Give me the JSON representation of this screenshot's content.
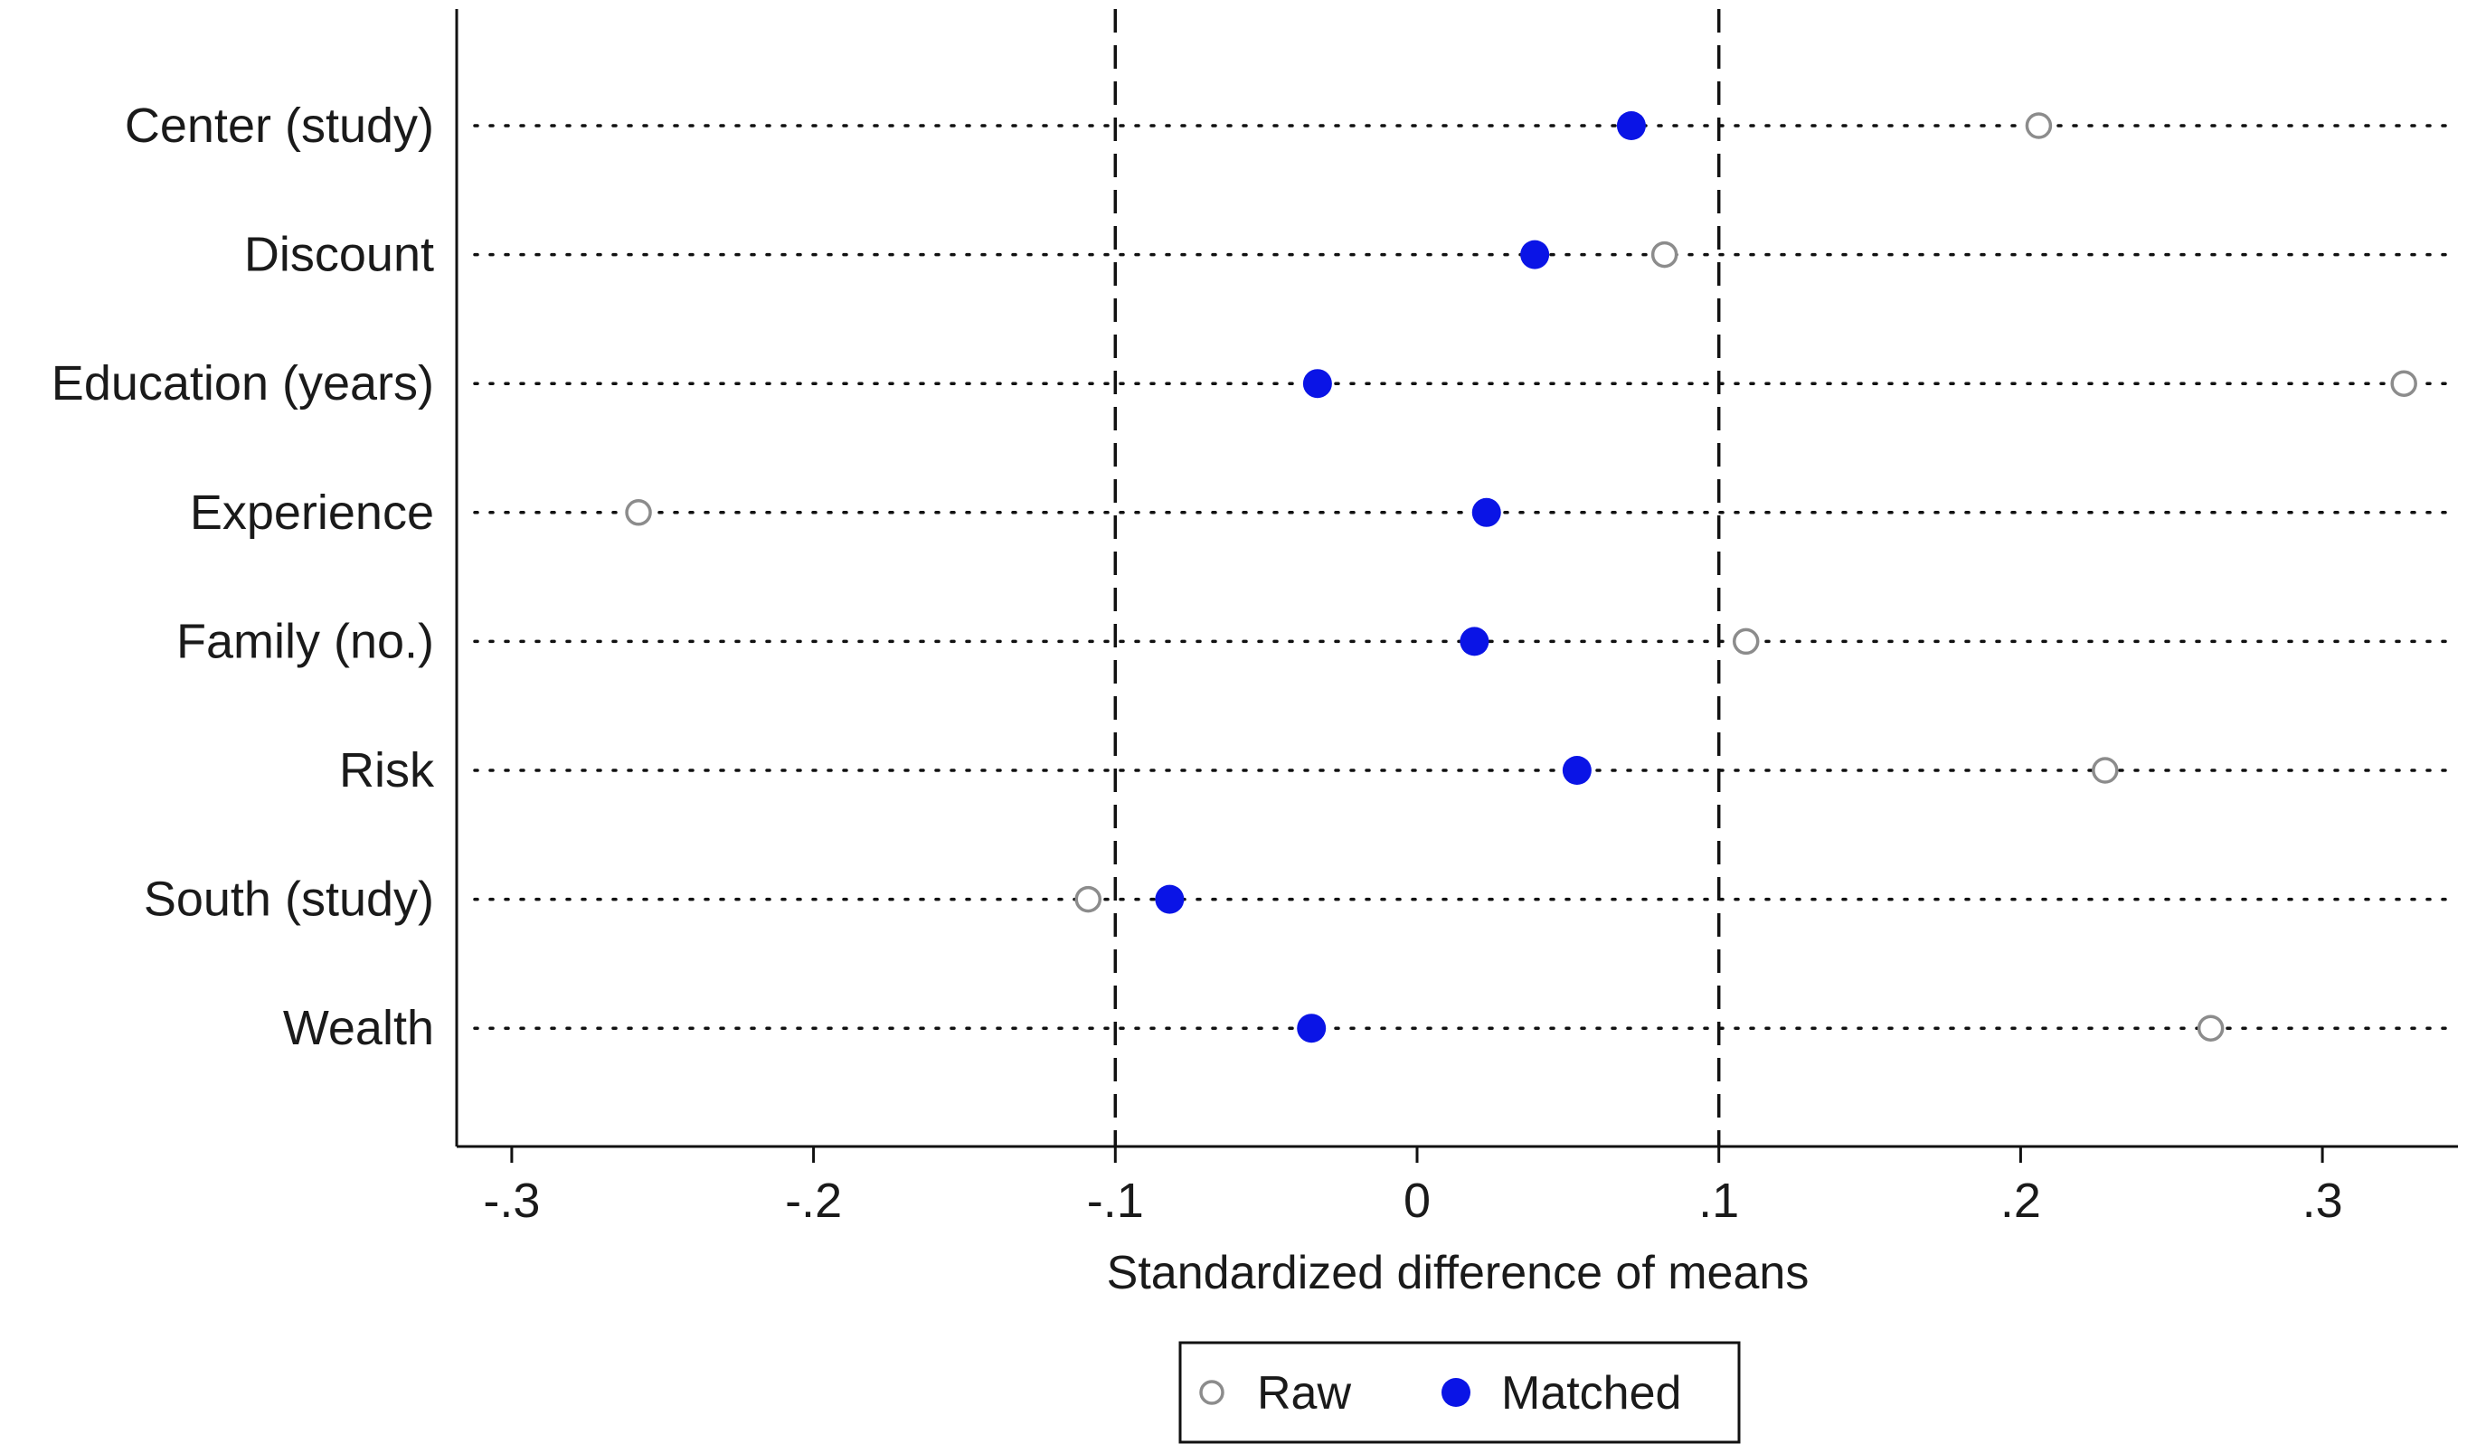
{
  "chart_data": {
    "type": "scatter",
    "title": "",
    "xlabel": "Standardized difference of means",
    "ylabel": "",
    "xlim": [
      -0.32,
      0.345
    ],
    "x_ticks": [
      -0.3,
      -0.2,
      -0.1,
      0,
      0.1,
      0.2,
      0.3
    ],
    "x_tick_labels": [
      "-.3",
      "-.2",
      "-.1",
      "0",
      ".1",
      ".2",
      ".3"
    ],
    "reference_lines": [
      -0.1,
      0.1
    ],
    "categories": [
      "Center (study)",
      "Discount",
      "Education (years)",
      "Experience",
      "Family (no.)",
      "Risk",
      "South (study)",
      "Wealth"
    ],
    "series": [
      {
        "name": "Raw",
        "marker": "hollow-circle",
        "color": "#8c8c8c",
        "values": [
          0.206,
          0.082,
          0.327,
          -0.258,
          0.109,
          0.228,
          -0.109,
          0.263
        ]
      },
      {
        "name": "Matched",
        "marker": "filled-circle",
        "color": "#0a14e6",
        "values": [
          0.071,
          0.039,
          -0.033,
          0.023,
          0.019,
          0.053,
          -0.082,
          -0.035
        ]
      }
    ],
    "legend": {
      "position": "bottom-center",
      "entries": [
        "Raw",
        "Matched"
      ]
    }
  }
}
